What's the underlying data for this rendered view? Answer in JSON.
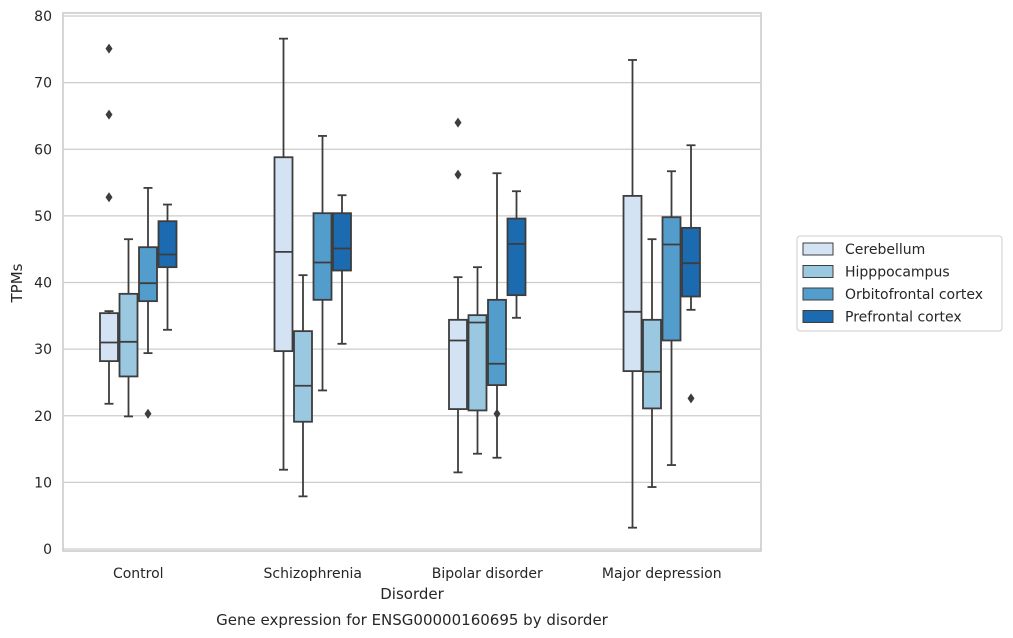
{
  "caption": "Gene expression for ENSG00000160695 by disorder",
  "chart_data": {
    "type": "boxplot",
    "xlabel": "Disorder",
    "ylabel": "TPMs",
    "ylim": [
      0,
      80
    ],
    "yticks": [
      "0",
      "10",
      "20",
      "30",
      "40",
      "50",
      "60",
      "70",
      "80"
    ],
    "grid": "horizontal",
    "legend_position": "right",
    "categories": [
      "Control",
      "Schizophrenia",
      "Bipolar disorder",
      "Major depression"
    ],
    "series": [
      {
        "name": "Cerebellum",
        "color": "#d3e3f3",
        "boxes": [
          {
            "whislo": 21.8,
            "q1": 28.2,
            "med": 31.0,
            "q3": 35.4,
            "whishi": 35.7,
            "fliers": [
              52.8,
              65.2,
              75.1
            ]
          },
          {
            "whislo": 11.9,
            "q1": 29.7,
            "med": 44.6,
            "q3": 58.8,
            "whishi": 76.6,
            "fliers": []
          },
          {
            "whislo": 11.5,
            "q1": 21.0,
            "med": 31.3,
            "q3": 34.4,
            "whishi": 40.8,
            "fliers": [
              56.2,
              64.0
            ]
          },
          {
            "whislo": 3.2,
            "q1": 26.7,
            "med": 35.6,
            "q3": 53.0,
            "whishi": 73.4,
            "fliers": []
          }
        ]
      },
      {
        "name": "Hipppocampus",
        "color": "#9ac8e0",
        "boxes": [
          {
            "whislo": 19.9,
            "q1": 25.9,
            "med": 31.1,
            "q3": 38.3,
            "whishi": 46.5,
            "fliers": []
          },
          {
            "whislo": 7.9,
            "q1": 19.1,
            "med": 24.5,
            "q3": 32.7,
            "whishi": 41.1,
            "fliers": []
          },
          {
            "whislo": 14.3,
            "q1": 20.8,
            "med": 34.0,
            "q3": 35.1,
            "whishi": 42.3,
            "fliers": []
          },
          {
            "whislo": 9.3,
            "q1": 21.1,
            "med": 26.6,
            "q3": 34.4,
            "whishi": 46.5,
            "fliers": []
          }
        ]
      },
      {
        "name": "Orbitofrontal cortex",
        "color": "#529dcc",
        "boxes": [
          {
            "whislo": 29.4,
            "q1": 37.2,
            "med": 39.9,
            "q3": 45.3,
            "whishi": 54.2,
            "fliers": [
              20.3
            ]
          },
          {
            "whislo": 23.8,
            "q1": 37.4,
            "med": 43.0,
            "q3": 50.4,
            "whishi": 62.0,
            "fliers": []
          },
          {
            "whislo": 13.7,
            "q1": 24.6,
            "med": 27.8,
            "q3": 37.4,
            "whishi": 56.4,
            "fliers": [
              20.3
            ]
          },
          {
            "whislo": 12.6,
            "q1": 31.3,
            "med": 45.7,
            "q3": 49.8,
            "whishi": 56.7,
            "fliers": []
          }
        ]
      },
      {
        "name": "Prefrontal cortex",
        "color": "#1c6aaf",
        "boxes": [
          {
            "whislo": 32.9,
            "q1": 42.3,
            "med": 44.2,
            "q3": 49.2,
            "whishi": 51.7,
            "fliers": []
          },
          {
            "whislo": 30.8,
            "q1": 41.8,
            "med": 45.1,
            "q3": 50.4,
            "whishi": 53.1,
            "fliers": []
          },
          {
            "whislo": 34.7,
            "q1": 38.1,
            "med": 45.8,
            "q3": 49.6,
            "whishi": 53.7,
            "fliers": []
          },
          {
            "whislo": 35.9,
            "q1": 37.9,
            "med": 42.9,
            "q3": 48.2,
            "whishi": 60.6,
            "fliers": [
              22.6
            ]
          }
        ]
      }
    ]
  }
}
